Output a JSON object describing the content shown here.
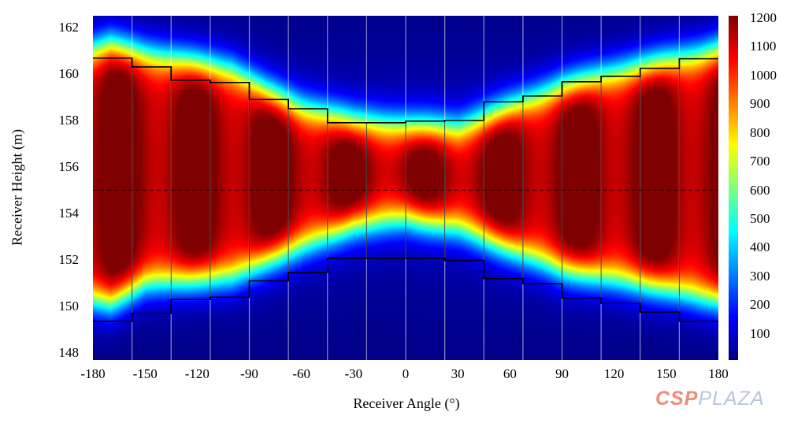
{
  "chart_data": {
    "type": "heatmap",
    "title": "",
    "xlabel": "Receiver Angle (°)",
    "ylabel": "Receiver Height (m)",
    "xlim": [
      -180,
      180
    ],
    "ylim": [
      147.7,
      162.5
    ],
    "xticks": [
      -180,
      -150,
      -120,
      -90,
      -60,
      -30,
      0,
      30,
      60,
      90,
      120,
      150,
      180
    ],
    "yticks": [
      148,
      150,
      152,
      154,
      156,
      158,
      160,
      162
    ],
    "colorbar": {
      "range": [
        0,
        1200
      ],
      "ticks": [
        100,
        200,
        300,
        400,
        500,
        600,
        700,
        800,
        900,
        1000,
        1100,
        1200
      ],
      "colormap": "jet"
    },
    "panel_boundaries_deg": [
      -157.5,
      -135,
      -112.5,
      -90,
      -67.5,
      -45,
      -22.5,
      0,
      22.5,
      45,
      67.5,
      90,
      112.5,
      135,
      157.5
    ],
    "panel_top_height_m": [
      160.68,
      160.3,
      159.73,
      159.63,
      158.9,
      158.5,
      157.9,
      157.9,
      157.97,
      158.0,
      158.8,
      159.05,
      159.66,
      159.9,
      160.24,
      160.65
    ],
    "panel_bottom_height_m": [
      149.36,
      149.7,
      150.3,
      150.4,
      151.1,
      151.46,
      152.07,
      152.07,
      152.07,
      151.98,
      151.2,
      150.98,
      150.37,
      150.13,
      149.76,
      149.36
    ],
    "centerline_height_m": 155.0,
    "flux_band": {
      "angle_deg": [
        -180,
        -170,
        -150,
        -120,
        -100,
        -80,
        -60,
        -30,
        0,
        30,
        60,
        90,
        120,
        150,
        170,
        180
      ],
      "upper_edge_m": [
        161.1,
        161.3,
        160.9,
        160.5,
        160.2,
        159.3,
        158.6,
        158.0,
        157.8,
        157.7,
        158.6,
        159.5,
        160.1,
        160.6,
        160.9,
        161.1
      ],
      "lower_edge_m": [
        150.3,
        150.2,
        151.0,
        151.2,
        151.3,
        152.0,
        152.6,
        153.5,
        153.8,
        153.4,
        152.5,
        151.6,
        151.2,
        150.8,
        150.4,
        150.3
      ],
      "peak_flux": 1150
    }
  },
  "watermark": {
    "part1": "CSP",
    "part2": "PLAZA"
  }
}
